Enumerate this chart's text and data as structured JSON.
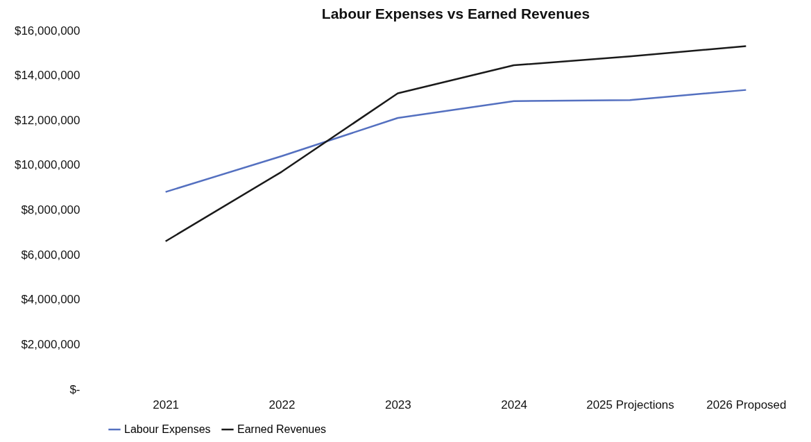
{
  "chart_data": {
    "type": "line",
    "title": "Labour Expenses vs Earned Revenues",
    "categories": [
      "2021",
      "2022",
      "2023",
      "2024",
      "2025 Projections",
      "2026 Proposed"
    ],
    "series": [
      {
        "name": "Labour Expenses",
        "color": "#5470c0",
        "values": [
          8800000,
          10400000,
          12100000,
          12850000,
          12900000,
          13350000
        ]
      },
      {
        "name": "Earned Revenues",
        "color": "#1a1a1a",
        "values": [
          6600000,
          9700000,
          13200000,
          14450000,
          14850000,
          15300000
        ]
      }
    ],
    "ylim": [
      0,
      16000000
    ],
    "yticks": [
      {
        "value": 0,
        "label": "$-"
      },
      {
        "value": 2000000,
        "label": "$2,000,000"
      },
      {
        "value": 4000000,
        "label": "$4,000,000"
      },
      {
        "value": 6000000,
        "label": "$6,000,000"
      },
      {
        "value": 8000000,
        "label": "$8,000,000"
      },
      {
        "value": 10000000,
        "label": "$10,000,000"
      },
      {
        "value": 12000000,
        "label": "$12,000,000"
      },
      {
        "value": 14000000,
        "label": "$14,000,000"
      },
      {
        "value": 16000000,
        "label": "$16,000,000"
      }
    ],
    "grid": false,
    "legend": "bottom",
    "marker": "none",
    "line_style": "solid"
  }
}
